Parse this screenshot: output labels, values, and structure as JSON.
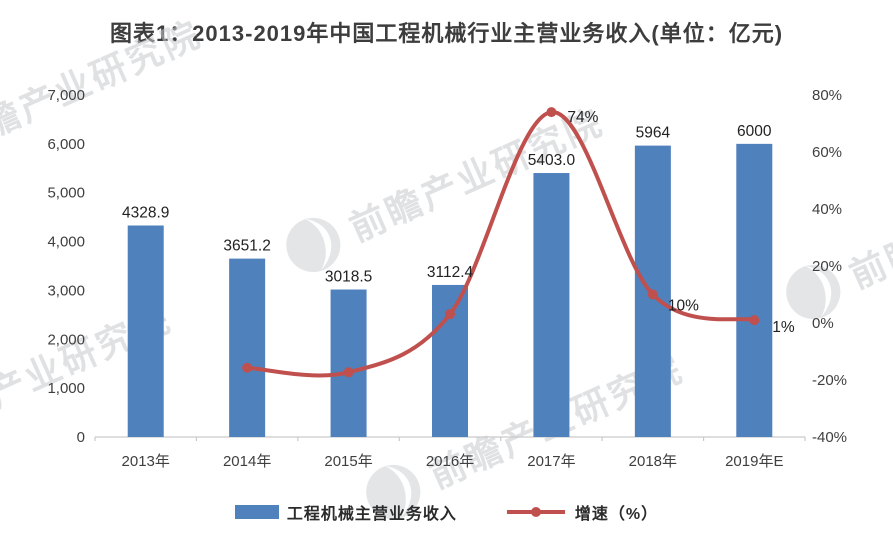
{
  "title": "图表1：2013-2019年中国工程机械行业主营业务收入(单位：亿元)",
  "watermark": {
    "text": "前瞻产业研究院"
  },
  "legend": {
    "bars": "工程机械主营业务收入",
    "line": "增速（%）"
  },
  "colors": {
    "bar": "#4F81BD",
    "line": "#C0504D",
    "axis_text": "#3f3f3f",
    "data_label": "#222222",
    "axis_line": "#c9c9c9"
  },
  "chart_data": {
    "type": "bar",
    "title": "图表1：2013-2019年中国工程机械行业主营业务收入(单位：亿元)",
    "categories": [
      "2013年",
      "2014年",
      "2015年",
      "2016年",
      "2017年",
      "2018年",
      "2019年E"
    ],
    "series": [
      {
        "name": "工程机械主营业务收入",
        "type": "bar",
        "axis": "left",
        "values": [
          4328.9,
          3651.2,
          3018.5,
          3112.4,
          5403.0,
          5964,
          6000
        ],
        "labels": [
          "4328.9",
          "3651.2",
          "3018.5",
          "3112.4",
          "5403.0",
          "5964",
          "6000"
        ],
        "color": "#4F81BD"
      },
      {
        "name": "增速（%）",
        "type": "line",
        "axis": "right",
        "x_start_index": 1,
        "values": [
          -15.7,
          -17.3,
          3.1,
          74,
          10,
          1
        ],
        "labels": [
          null,
          null,
          null,
          "74%",
          "10%",
          "1%"
        ],
        "color": "#C0504D"
      }
    ],
    "left_axis": {
      "min": 0,
      "max": 7000,
      "tick_step": 1000,
      "tick_labels": [
        "0",
        "1,000",
        "2,000",
        "3,000",
        "4,000",
        "5,000",
        "6,000",
        "7,000"
      ]
    },
    "right_axis": {
      "min": -40,
      "max": 80,
      "tick_step": 20,
      "tick_labels": [
        "-40%",
        "-20%",
        "0%",
        "20%",
        "40%",
        "60%",
        "80%"
      ]
    },
    "grid": false,
    "legend_position": "bottom",
    "xlabel": "",
    "ylabel": ""
  }
}
